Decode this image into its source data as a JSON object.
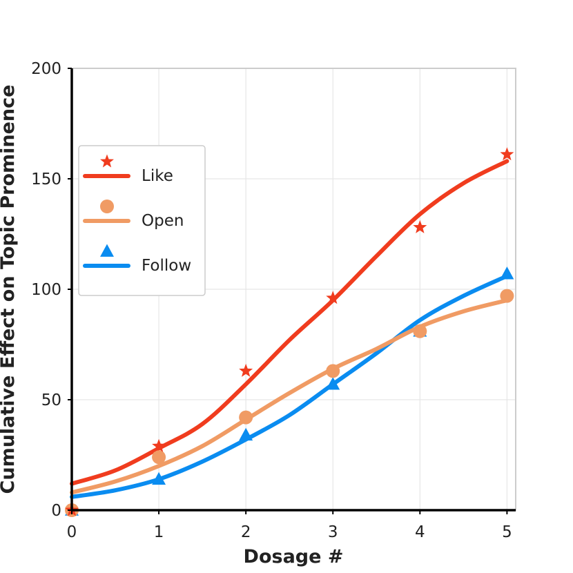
{
  "chart_data": {
    "type": "line",
    "title": "",
    "xlabel": "Dosage #",
    "ylabel": "Cumulative Effect on Topic Prominence",
    "xlim": [
      0,
      5.1
    ],
    "ylim": [
      0,
      200
    ],
    "xticks": [
      0,
      1,
      2,
      3,
      4,
      5
    ],
    "yticks": [
      0,
      50,
      100,
      150,
      200
    ],
    "grid": true,
    "legend_position": "center-left",
    "x": [
      0,
      1,
      2,
      3,
      4,
      5
    ],
    "series": [
      {
        "name": "Like",
        "color": "#f03c1e",
        "marker": "star",
        "points": [
          0,
          29,
          63,
          96,
          128,
          161
        ],
        "fit": [
          [
            0,
            12
          ],
          [
            0.5,
            18
          ],
          [
            1,
            28
          ],
          [
            1.5,
            39
          ],
          [
            2,
            57
          ],
          [
            2.5,
            77
          ],
          [
            3,
            95
          ],
          [
            3.5,
            115
          ],
          [
            4,
            134
          ],
          [
            4.5,
            148
          ],
          [
            5,
            158
          ]
        ]
      },
      {
        "name": "Open",
        "color": "#f09b64",
        "marker": "circle",
        "points": [
          0,
          24,
          42,
          63,
          81,
          97
        ],
        "fit": [
          [
            0,
            8
          ],
          [
            0.5,
            13
          ],
          [
            1,
            20
          ],
          [
            1.5,
            29
          ],
          [
            2,
            41
          ],
          [
            2.5,
            53
          ],
          [
            3,
            64
          ],
          [
            3.5,
            73
          ],
          [
            4,
            83
          ],
          [
            4.5,
            90
          ],
          [
            5,
            95
          ]
        ]
      },
      {
        "name": "Follow",
        "color": "#0a8cf0",
        "marker": "triangle",
        "points": [
          0,
          14,
          34,
          57,
          81,
          107
        ],
        "fit": [
          [
            0,
            6
          ],
          [
            0.5,
            9
          ],
          [
            1,
            14
          ],
          [
            1.5,
            22
          ],
          [
            2,
            32
          ],
          [
            2.5,
            43
          ],
          [
            3,
            57
          ],
          [
            3.5,
            71
          ],
          [
            4,
            86
          ],
          [
            4.5,
            97
          ],
          [
            5,
            106
          ]
        ]
      }
    ]
  }
}
